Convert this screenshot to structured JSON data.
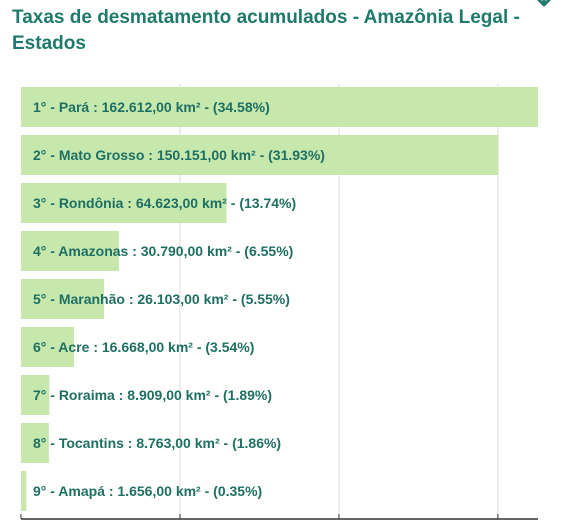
{
  "title": "Taxas de desmatamento acumulados - Amazônia Legal - Estados",
  "icons": {
    "download": "download-icon"
  },
  "colors": {
    "bar": "#c6e8ad",
    "title": "#1f7a6b",
    "label": "#1f6f63",
    "grid": "#dcdcdc",
    "axis": "#333333"
  },
  "chart_data": {
    "type": "bar",
    "orientation": "horizontal",
    "categories": [
      "Pará",
      "Mato Grosso",
      "Rondônia",
      "Amazonas",
      "Maranhão",
      "Acre",
      "Roraima",
      "Tocantins",
      "Amapá"
    ],
    "values": [
      162612,
      150151,
      64623,
      30790,
      26103,
      16668,
      8909,
      8763,
      1656
    ],
    "labels": [
      "1° - Pará : 162.612,00 km² - (34.58%)",
      "2° - Mato Grosso : 150.151,00 km² - (31.93%)",
      "3° - Rondônia : 64.623,00 km² - (13.74%)",
      "4° - Amazonas : 30.790,00 km² - (6.55%)",
      "5° - Maranhão : 26.103,00 km² - (5.55%)",
      "6° - Acre : 16.668,00 km² - (3.54%)",
      "7° - Roraima : 8.909,00 km² - (1.89%)",
      "8° - Tocantins : 8.763,00 km² - (1.86%)",
      "9° - Amapá : 1.656,00 km² - (0.35%)"
    ],
    "xlim": [
      0,
      162612
    ],
    "grid": true,
    "gridlines": [
      50000,
      100000,
      150000
    ]
  }
}
